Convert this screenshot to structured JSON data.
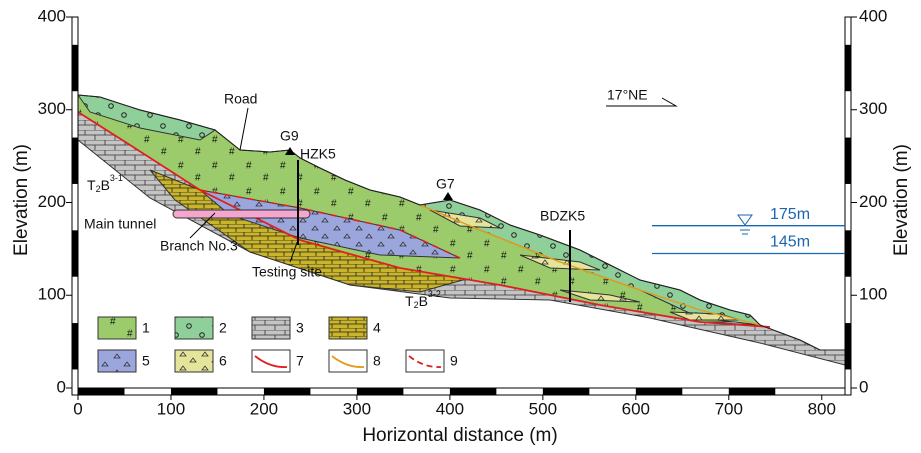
{
  "axes": {
    "xlabel": "Horizontal distance (m)",
    "ylabel_left": "Elevation (m)",
    "ylabel_right": "Elevation (m)",
    "xlim": [
      0,
      825
    ],
    "ylim": [
      0,
      400
    ],
    "xticks": [
      0,
      100,
      200,
      300,
      400,
      500,
      600,
      700,
      800
    ],
    "yticks": [
      0,
      100,
      200,
      300,
      400
    ]
  },
  "annotations": {
    "road": "Road",
    "g9": "G9",
    "hzk5": "HZK5",
    "g7": "G7",
    "bdzk5": "BDZK5",
    "main_tunnel": "Main tunnel",
    "branch": "Branch No.3",
    "testing_site": "Testing site",
    "strike": "17°NE"
  },
  "strata": [
    {
      "t": "T",
      "sub": "2",
      "b": "B",
      "sup": "3-1"
    },
    {
      "t": "T",
      "sub": "2",
      "b": "B",
      "sup": "3-2"
    }
  ],
  "water_levels": [
    {
      "value": 175,
      "label": "175m"
    },
    {
      "value": 145,
      "label": "145m"
    }
  ],
  "legend": [
    "1",
    "2",
    "3",
    "4",
    "5",
    "6",
    "7",
    "8",
    "9"
  ]
}
